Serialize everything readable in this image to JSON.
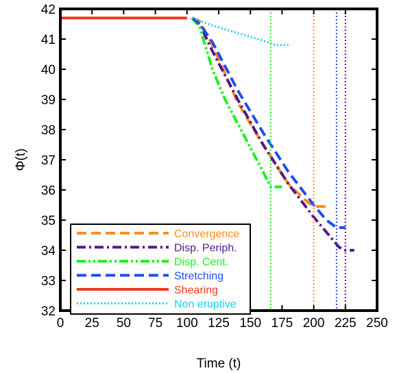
{
  "chart_data": {
    "type": "line",
    "xlabel": "Time (t)",
    "ylabel": "Φ(t)",
    "xlim": [
      0,
      250
    ],
    "ylim": [
      32,
      42
    ],
    "xticks": [
      "0",
      "25",
      "50",
      "75",
      "100",
      "125",
      "150",
      "175",
      "200",
      "225",
      "250"
    ],
    "yticks": [
      "32",
      "33",
      "34",
      "35",
      "36",
      "37",
      "38",
      "39",
      "40",
      "41",
      "42"
    ],
    "grid": false,
    "legend_position": "bottom-left",
    "series": [
      {
        "name": "Convergence",
        "color": "#ff8c1a",
        "style": "dashed",
        "x": [
          104,
          110,
          120,
          140,
          160,
          180,
          195,
          200,
          208,
          212
        ],
        "y": [
          41.7,
          41.6,
          40.8,
          38.9,
          37.5,
          36.2,
          35.6,
          35.45,
          35.45,
          35.45
        ]
      },
      {
        "name": "Disp. Periph.",
        "color": "#55168e",
        "style": "dash-dot",
        "x": [
          104,
          110,
          120,
          140,
          160,
          180,
          200,
          220,
          225,
          232
        ],
        "y": [
          41.7,
          41.5,
          40.6,
          39.0,
          37.5,
          36.2,
          35.1,
          34.1,
          34.0,
          34.0
        ]
      },
      {
        "name": "Disp. Cent.",
        "color": "#1ef01e",
        "style": "dash-dot-dot",
        "x": [
          104,
          110,
          120,
          130,
          140,
          150,
          160,
          166,
          170,
          175
        ],
        "y": [
          41.7,
          41.4,
          40.0,
          39.0,
          38.2,
          37.4,
          36.6,
          36.1,
          36.1,
          36.1
        ]
      },
      {
        "name": "Stretching",
        "color": "#1e4ef0",
        "style": "dashed",
        "x": [
          104,
          110,
          120,
          140,
          160,
          180,
          200,
          210,
          218,
          225
        ],
        "y": [
          41.7,
          41.5,
          40.9,
          39.3,
          37.9,
          36.6,
          35.5,
          35.0,
          34.75,
          34.75
        ]
      },
      {
        "name": "Shearing",
        "color": "#f03a1e",
        "style": "solid",
        "x": [
          0,
          100
        ],
        "y": [
          41.7,
          41.7
        ]
      },
      {
        "name": "Non eruptive",
        "color": "#1ec8f0",
        "style": "dotted",
        "x": [
          104,
          120,
          140,
          160,
          170,
          180
        ],
        "y": [
          41.7,
          41.45,
          41.2,
          40.95,
          40.8,
          40.8
        ]
      }
    ],
    "vlines": [
      {
        "x": 166,
        "color": "#1ef01e"
      },
      {
        "x": 200,
        "color": "#ff8c1a"
      },
      {
        "x": 218,
        "color": "#1e4ef0"
      },
      {
        "x": 225,
        "color": "#55168e"
      }
    ]
  }
}
